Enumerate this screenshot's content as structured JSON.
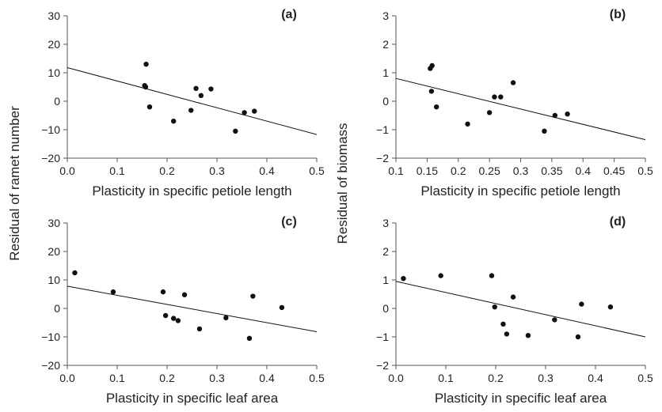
{
  "chart_data": [
    {
      "type": "scatter",
      "panel_label": "(a)",
      "xlabel": "Plasticity in specific petiole length",
      "ylabel": "Residual of ramet number",
      "xlim": [
        0.0,
        0.5
      ],
      "ylim": [
        -20,
        30
      ],
      "xticks": [
        "0.0",
        "0.1",
        "0.2",
        "0.3",
        "0.4",
        "0.5"
      ],
      "yticks": [
        "−20",
        "−10",
        "0",
        "10",
        "20",
        "30"
      ],
      "points": [
        {
          "x": 0.155,
          "y": 5.5
        },
        {
          "x": 0.157,
          "y": 5.0
        },
        {
          "x": 0.158,
          "y": 13.0
        },
        {
          "x": 0.165,
          "y": -2.0
        },
        {
          "x": 0.213,
          "y": -7.0
        },
        {
          "x": 0.248,
          "y": -3.2
        },
        {
          "x": 0.258,
          "y": 4.5
        },
        {
          "x": 0.268,
          "y": 2.0
        },
        {
          "x": 0.288,
          "y": 4.3
        },
        {
          "x": 0.337,
          "y": -10.5
        },
        {
          "x": 0.355,
          "y": -4.0
        },
        {
          "x": 0.375,
          "y": -3.5
        }
      ],
      "fit_line": {
        "x": [
          0.0,
          0.5
        ],
        "y": [
          11.8,
          -11.7
        ]
      }
    },
    {
      "type": "scatter",
      "panel_label": "(b)",
      "xlabel": "Plasticity in specific petiole length",
      "ylabel": "Residual of biomass",
      "xlim": [
        0.1,
        0.5
      ],
      "ylim": [
        -2,
        3
      ],
      "xticks": [
        "0.1",
        "0.15",
        "0.2",
        "0.25",
        "0.3",
        "0.35",
        "0.4",
        "0.45",
        "0.5"
      ],
      "yticks": [
        "−2",
        "−1",
        "0",
        "1",
        "2",
        "3"
      ],
      "points": [
        {
          "x": 0.155,
          "y": 1.15
        },
        {
          "x": 0.158,
          "y": 1.25
        },
        {
          "x": 0.157,
          "y": 0.35
        },
        {
          "x": 0.165,
          "y": -0.2
        },
        {
          "x": 0.215,
          "y": -0.8
        },
        {
          "x": 0.25,
          "y": -0.4
        },
        {
          "x": 0.258,
          "y": 0.15
        },
        {
          "x": 0.268,
          "y": 0.15
        },
        {
          "x": 0.288,
          "y": 0.65
        },
        {
          "x": 0.338,
          "y": -1.05
        },
        {
          "x": 0.355,
          "y": -0.5
        },
        {
          "x": 0.375,
          "y": -0.45
        }
      ],
      "fit_line": {
        "x": [
          0.1,
          0.5
        ],
        "y": [
          0.8,
          -1.35
        ]
      }
    },
    {
      "type": "scatter",
      "panel_label": "(c)",
      "xlabel": "Plasticity in specific leaf area",
      "ylabel": "Residual of ramet number",
      "xlim": [
        0.0,
        0.5
      ],
      "ylim": [
        -20,
        30
      ],
      "xticks": [
        "0.0",
        "0.1",
        "0.2",
        "0.3",
        "0.4",
        "0.5"
      ],
      "yticks": [
        "−20",
        "−10",
        "0",
        "10",
        "20",
        "30"
      ],
      "points": [
        {
          "x": 0.015,
          "y": 12.5
        },
        {
          "x": 0.092,
          "y": 5.8
        },
        {
          "x": 0.192,
          "y": 5.8
        },
        {
          "x": 0.197,
          "y": -2.5
        },
        {
          "x": 0.213,
          "y": -3.5
        },
        {
          "x": 0.222,
          "y": -4.3
        },
        {
          "x": 0.235,
          "y": 4.8
        },
        {
          "x": 0.265,
          "y": -7.2
        },
        {
          "x": 0.318,
          "y": -3.3
        },
        {
          "x": 0.365,
          "y": -10.5
        },
        {
          "x": 0.372,
          "y": 4.3
        },
        {
          "x": 0.43,
          "y": 0.3
        }
      ],
      "fit_line": {
        "x": [
          0.0,
          0.5
        ],
        "y": [
          7.8,
          -8.2
        ]
      }
    },
    {
      "type": "scatter",
      "panel_label": "(d)",
      "xlabel": "Plasticity in specific leaf area",
      "ylabel": "Residual of biomass",
      "xlim": [
        0.0,
        0.5
      ],
      "ylim": [
        -2,
        3
      ],
      "xticks": [
        "0.0",
        "0.1",
        "0.2",
        "0.3",
        "0.4",
        "0.5"
      ],
      "yticks": [
        "−2",
        "−1",
        "0",
        "1",
        "2",
        "3"
      ],
      "points": [
        {
          "x": 0.015,
          "y": 1.05
        },
        {
          "x": 0.09,
          "y": 1.15
        },
        {
          "x": 0.192,
          "y": 1.15
        },
        {
          "x": 0.198,
          "y": 0.05
        },
        {
          "x": 0.215,
          "y": -0.55
        },
        {
          "x": 0.222,
          "y": -0.9
        },
        {
          "x": 0.235,
          "y": 0.4
        },
        {
          "x": 0.265,
          "y": -0.95
        },
        {
          "x": 0.318,
          "y": -0.4
        },
        {
          "x": 0.365,
          "y": -1.0
        },
        {
          "x": 0.372,
          "y": 0.15
        },
        {
          "x": 0.43,
          "y": 0.05
        }
      ],
      "fit_line": {
        "x": [
          0.0,
          0.5
        ],
        "y": [
          0.95,
          -1.0
        ]
      }
    }
  ]
}
